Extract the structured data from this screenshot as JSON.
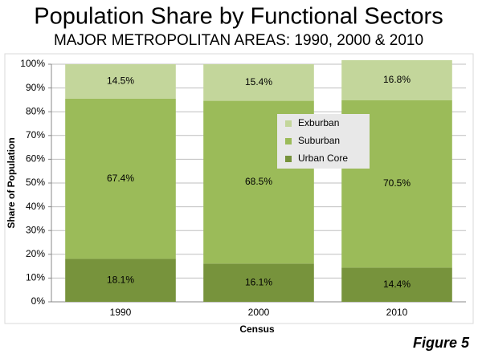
{
  "chart_data": {
    "type": "stacked_bar",
    "title": "Population Share by Functional Sectors",
    "subtitle": "MAJOR METROPOLITAN AREAS: 1990, 2000 & 2010",
    "x_label": "Census",
    "y_label": "Share of Population",
    "annotation": "Figure 5",
    "categories": [
      "1990",
      "2000",
      "2010"
    ],
    "series": [
      {
        "name": "Urban Core",
        "color": "#77933c",
        "values": [
          18.1,
          16.1,
          14.4
        ],
        "value_labels": [
          "18.1%",
          "16.1%",
          "14.4%"
        ]
      },
      {
        "name": "Suburban",
        "color": "#9bbb59",
        "values": [
          67.4,
          68.5,
          70.5
        ],
        "value_labels": [
          "67.4%",
          "68.5%",
          "70.5%"
        ]
      },
      {
        "name": "Exburban",
        "color": "#c3d69b",
        "values": [
          14.5,
          15.4,
          16.8
        ],
        "value_labels": [
          "14.5%",
          "15.4%",
          "16.8%"
        ]
      }
    ],
    "ylim": [
      0,
      100
    ],
    "yticks": [
      {
        "value": 0,
        "label": "0%"
      },
      {
        "value": 10,
        "label": "10%"
      },
      {
        "value": 20,
        "label": "20%"
      },
      {
        "value": 30,
        "label": "30%"
      },
      {
        "value": 40,
        "label": "40%"
      },
      {
        "value": 50,
        "label": "50%"
      },
      {
        "value": 60,
        "label": "60%"
      },
      {
        "value": 70,
        "label": "70%"
      },
      {
        "value": 80,
        "label": "80%"
      },
      {
        "value": 90,
        "label": "90%"
      },
      {
        "value": 100,
        "label": "100%"
      }
    ],
    "grid": true,
    "legend": "inside"
  }
}
